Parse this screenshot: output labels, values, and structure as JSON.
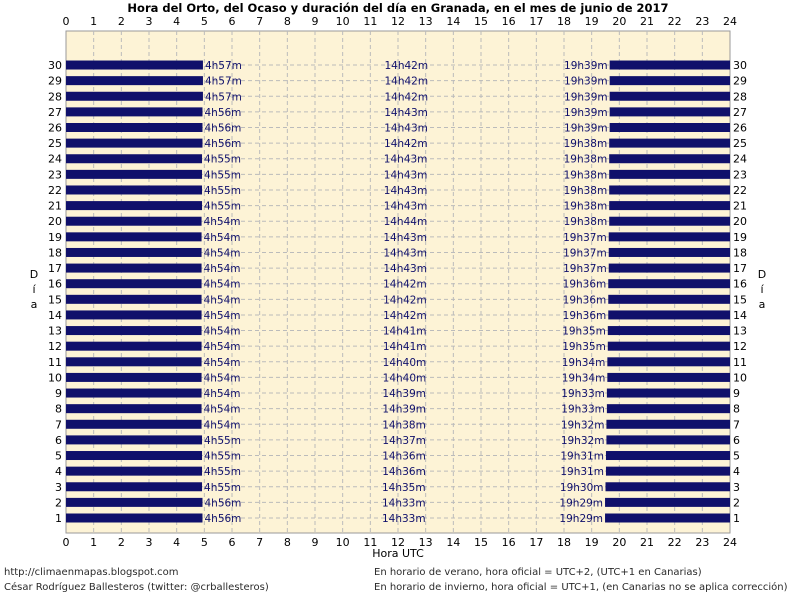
{
  "chart_data": {
    "type": "bar",
    "title": "Hora del Orto, del Ocaso y duración del día en Granada, en el mes de junio de 2017",
    "xlabel": "Hora UTC",
    "ylabel": "Día",
    "xlim": [
      0,
      24
    ],
    "ylim": [
      1,
      30
    ],
    "x_ticks": [
      "0",
      "1",
      "2",
      "3",
      "4",
      "5",
      "6",
      "7",
      "8",
      "9",
      "10",
      "11",
      "12",
      "13",
      "14",
      "15",
      "16",
      "17",
      "18",
      "19",
      "20",
      "21",
      "22",
      "23",
      "24"
    ],
    "grid": true,
    "days": [
      "1",
      "2",
      "3",
      "4",
      "5",
      "6",
      "7",
      "8",
      "9",
      "10",
      "11",
      "12",
      "13",
      "14",
      "15",
      "16",
      "17",
      "18",
      "19",
      "20",
      "21",
      "22",
      "23",
      "24",
      "25",
      "26",
      "27",
      "28",
      "29",
      "30"
    ],
    "sunrise_labels": [
      "4h56m",
      "4h56m",
      "4h55m",
      "4h55m",
      "4h55m",
      "4h55m",
      "4h54m",
      "4h54m",
      "4h54m",
      "4h54m",
      "4h54m",
      "4h54m",
      "4h54m",
      "4h54m",
      "4h54m",
      "4h54m",
      "4h54m",
      "4h54m",
      "4h54m",
      "4h54m",
      "4h55m",
      "4h55m",
      "4h55m",
      "4h55m",
      "4h56m",
      "4h56m",
      "4h56m",
      "4h57m",
      "4h57m",
      "4h57m"
    ],
    "duration_labels": [
      "14h33m",
      "14h33m",
      "14h35m",
      "14h36m",
      "14h36m",
      "14h37m",
      "14h38m",
      "14h39m",
      "14h39m",
      "14h40m",
      "14h40m",
      "14h41m",
      "14h41m",
      "14h42m",
      "14h42m",
      "14h42m",
      "14h43m",
      "14h43m",
      "14h43m",
      "14h44m",
      "14h43m",
      "14h43m",
      "14h43m",
      "14h43m",
      "14h42m",
      "14h43m",
      "14h43m",
      "14h42m",
      "14h42m",
      "14h42m"
    ],
    "sunset_labels": [
      "19h29m",
      "19h29m",
      "19h30m",
      "19h31m",
      "19h31m",
      "19h32m",
      "19h32m",
      "19h33m",
      "19h33m",
      "19h34m",
      "19h34m",
      "19h35m",
      "19h35m",
      "19h36m",
      "19h36m",
      "19h36m",
      "19h37m",
      "19h37m",
      "19h37m",
      "19h38m",
      "19h38m",
      "19h38m",
      "19h38m",
      "19h38m",
      "19h38m",
      "19h39m",
      "19h39m",
      "19h39m",
      "19h39m",
      "19h39m"
    ],
    "colors": {
      "night_bar": "#10106b",
      "day_background": "#fdf3d6",
      "grid": "#bbbbbb"
    }
  },
  "footer": {
    "website": "http://climaenmapas.blogspot.com",
    "author": "César Rodríguez Ballesteros (twitter: @crballesteros)",
    "note_summer": "En horario de verano, hora oficial = UTC+2, (UTC+1 en Canarias)",
    "note_winter": "En horario de invierno, hora oficial = UTC+1, (en Canarias no se aplica corrección)"
  }
}
